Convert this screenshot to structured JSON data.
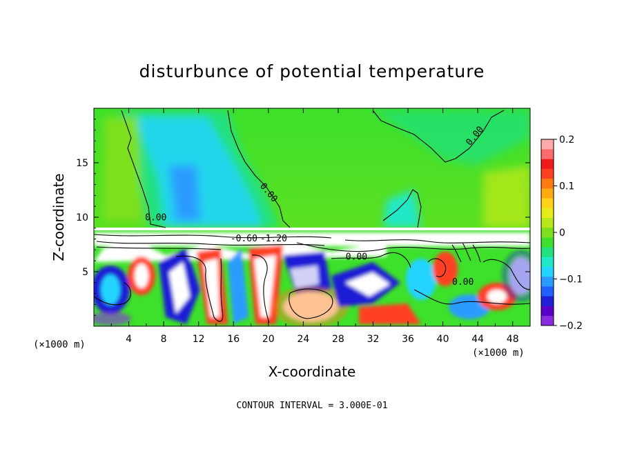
{
  "chart_data": {
    "type": "heatmap",
    "title": "disturbunce of potential temperature",
    "xlabel": "X-coordinate",
    "ylabel": "Z-coordinate",
    "x_unit_left": "(×1000 m)",
    "x_unit_right": "(×1000 m)",
    "xlim": [
      0,
      50
    ],
    "ylim": [
      0,
      20
    ],
    "x_ticks": [
      4,
      8,
      12,
      16,
      20,
      24,
      28,
      32,
      36,
      40,
      44,
      48
    ],
    "y_ticks": [
      5,
      10,
      15
    ],
    "colorbar": {
      "range": [
        -0.2,
        0.2
      ],
      "tick_values": [
        0.2,
        0.1,
        0,
        -0.1,
        -0.2
      ],
      "tick_labels": [
        "0.2",
        "0.1",
        "0",
        "−0.1",
        "−0.2"
      ],
      "colors": [
        "#8a2be2",
        "#5a00c8",
        "#1f1fd6",
        "#2060ff",
        "#2a9cff",
        "#22d4ff",
        "#20e8c8",
        "#20e080",
        "#3de02a",
        "#7de01c",
        "#b8e81a",
        "#e6ec1c",
        "#ffd21a",
        "#ffaa10",
        "#ff7a10",
        "#ff4020",
        "#f01a1a",
        "#ff6a6a",
        "#ffaaaa"
      ]
    },
    "contour_labels": [
      {
        "text": "0.00",
        "x": 43.9,
        "z": 17.3
      },
      {
        "text": "0.00",
        "x": 19.8,
        "z": 12.1
      },
      {
        "text": "0.00",
        "x": 7.1,
        "z": 9.7
      },
      {
        "text": "-0.60",
        "x": 17.2,
        "z": 7.8
      },
      {
        "text": "-1.20",
        "x": 20.6,
        "z": 7.8
      },
      {
        "text": "0.00",
        "x": 30.1,
        "z": 6.1
      },
      {
        "text": "0.00",
        "x": 42.3,
        "z": 3.8
      }
    ],
    "contour_interval_text": "CONTOUR INTERVAL = 3.000E-01"
  }
}
